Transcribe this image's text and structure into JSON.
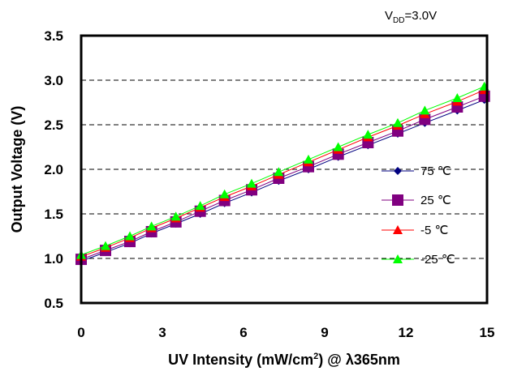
{
  "chart_data": {
    "type": "line",
    "annotation": {
      "prefix": "V",
      "subscript": "DD",
      "suffix": "=3.0V"
    },
    "xlabel": {
      "main": "UV Intensity (mW/cm",
      "sup": "2",
      "tail": ") @ λ365nm"
    },
    "ylabel": "Output Voltage (V)",
    "xlim": [
      0,
      15
    ],
    "ylim": [
      0.5,
      3.5
    ],
    "xticks": [
      "0",
      "3",
      "6",
      "9",
      "12",
      "15"
    ],
    "yticks": [
      "0.5",
      "1.0",
      "1.5",
      "2.0",
      "2.5",
      "3.0",
      "3.5"
    ],
    "grid": "horizontal-dashed",
    "legend_position": "right",
    "x": [
      0,
      0.9,
      1.8,
      2.6,
      3.5,
      4.4,
      5.3,
      6.3,
      7.3,
      8.4,
      9.5,
      10.6,
      11.7,
      12.7,
      13.9,
      14.9
    ],
    "series": [
      {
        "name": "75 ℃",
        "marker": "diamond",
        "color": "#000080",
        "values": [
          0.97,
          1.07,
          1.17,
          1.28,
          1.39,
          1.5,
          1.62,
          1.74,
          1.87,
          2.0,
          2.14,
          2.27,
          2.4,
          2.52,
          2.66,
          2.78
        ]
      },
      {
        "name": "25 ℃",
        "marker": "square",
        "color": "#800080",
        "values": [
          0.99,
          1.09,
          1.19,
          1.3,
          1.41,
          1.53,
          1.65,
          1.77,
          1.9,
          2.03,
          2.17,
          2.3,
          2.43,
          2.56,
          2.7,
          2.82
        ]
      },
      {
        "name": "-5 ℃",
        "marker": "triangle",
        "color": "#ff0000",
        "values": [
          1.02,
          1.12,
          1.23,
          1.34,
          1.45,
          1.57,
          1.69,
          1.81,
          1.94,
          2.08,
          2.22,
          2.36,
          2.49,
          2.62,
          2.76,
          2.89
        ]
      },
      {
        "name": "-25 ℃",
        "marker": "triangle",
        "color": "#00ff00",
        "values": [
          1.04,
          1.14,
          1.25,
          1.36,
          1.47,
          1.59,
          1.72,
          1.84,
          1.97,
          2.11,
          2.25,
          2.39,
          2.52,
          2.66,
          2.8,
          2.93
        ]
      }
    ]
  }
}
